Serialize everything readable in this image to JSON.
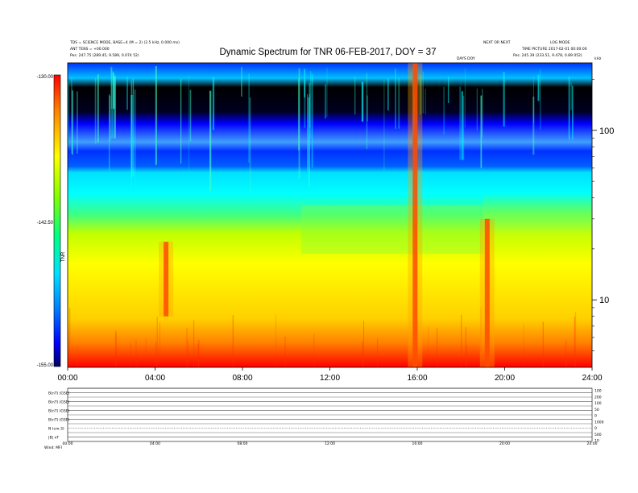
{
  "chart_data": {
    "type": "heatmap",
    "title": "Dynamic Spectrum for TNR 06-FEB-2017, DOY = 37",
    "header_left": [
      "TDS = SCIENCE MODE, BASE=4 (M = 2) (2.5 kHz, 0.000 ms)",
      "ANT TENS = +00.000",
      "Pos: 247.75 (289.45, 9.589, 0.074 52)"
    ],
    "header_right_a": "NEXT OR NEXT",
    "header_right_b": "LOG MODE",
    "header_right_c": "TIME PICTURE 2017-02-01 00:00:00",
    "header_right_d": "Pos: 245.39 (233.51, 9.478, 0.89 052)",
    "header_center_small": "DAYS DOY",
    "header_far_right": "kHz",
    "x_axis": {
      "ticks": [
        "00:00",
        "04:00",
        "08:00",
        "12:00",
        "16:00",
        "20:00",
        "24:00"
      ],
      "range_hours": [
        0,
        24
      ]
    },
    "y_axis": {
      "scale": "log",
      "range_khz": [
        4,
        250
      ],
      "ticks": [
        "100",
        "10"
      ],
      "tick_values": [
        100,
        10
      ]
    },
    "colorbar": {
      "labels": [
        "-130.00",
        "-142.50",
        "-155.00"
      ],
      "side_label": "TNR",
      "stops": [
        "#ff0000",
        "#ff8000",
        "#ffff00",
        "#80ff00",
        "#00ff80",
        "#00e0ff",
        "#0080ff",
        "#0000ff",
        "#000060"
      ]
    },
    "series": [
      {
        "kind": "radio_burst",
        "hour": 15.9,
        "from_khz": 4,
        "to_khz": 250
      },
      {
        "kind": "radio_burst",
        "hour": 19.2,
        "from_khz": 4,
        "to_khz": 30
      },
      {
        "kind": "radio_burst",
        "hour": 4.5,
        "from_khz": 8,
        "to_khz": 22
      }
    ],
    "strip_panels": {
      "labels": [
        "B(nT) (GSE)",
        "B(nT) (GSE)",
        "B(nT) (GSE)",
        "B(nT) (GSE)",
        "N (cm-3)",
        "|B| nT"
      ],
      "right_labels": [
        "100",
        "200",
        "100",
        "50",
        "0",
        "1000",
        "0",
        "500",
        "10"
      ],
      "time_ticks": [
        "00:00",
        "04:00",
        "08:00",
        "12:00",
        "16:00",
        "20:00",
        "24:00"
      ],
      "footer": "Wind: MFI"
    }
  }
}
